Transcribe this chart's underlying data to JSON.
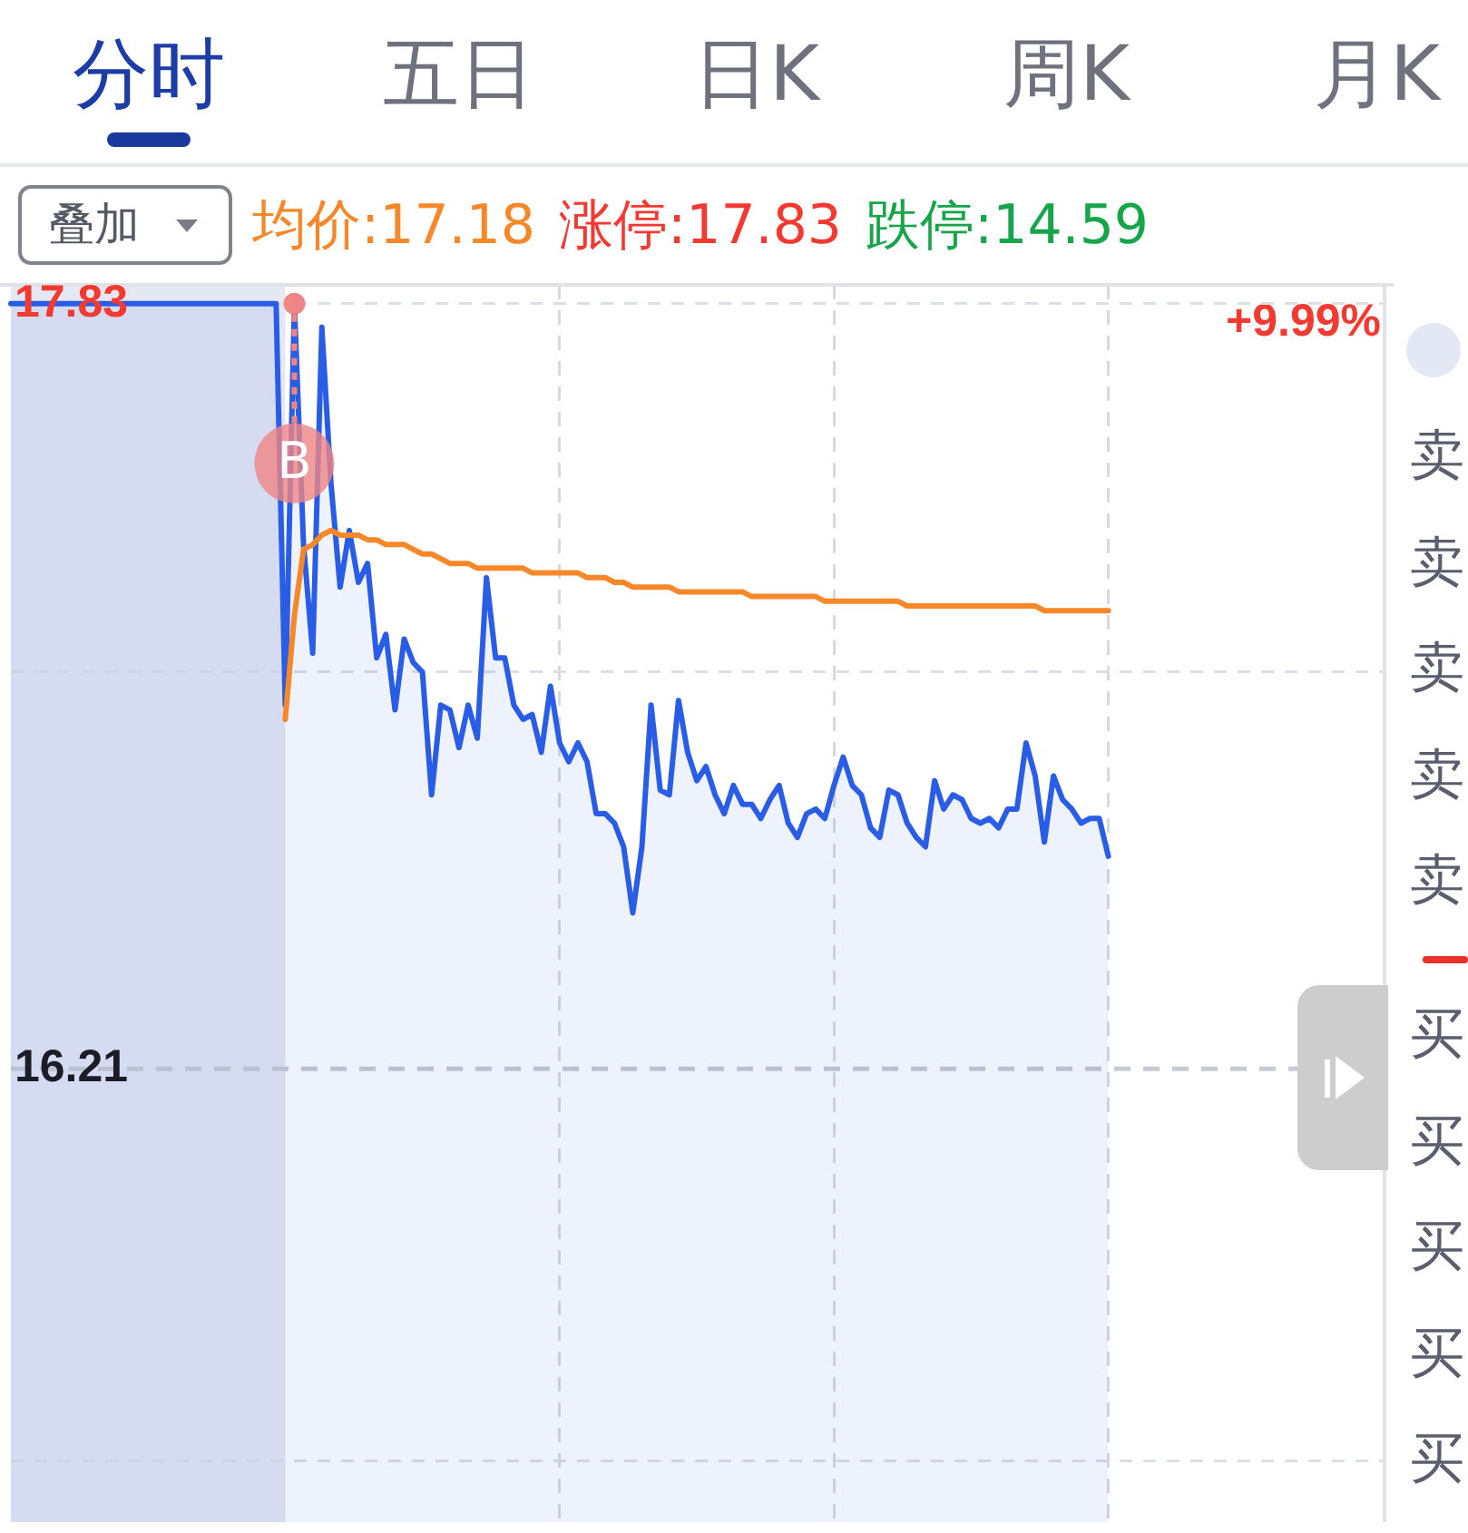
{
  "chart_data": [
    {
      "type": "other",
      "title": "分时",
      "annotations": [
        "五日",
        "日K",
        "周K",
        "月K"
      ]
    },
    {
      "type": "area",
      "categories": [
        null,
        null,
        null,
        null,
        null,
        null,
        null,
        null,
        null,
        null,
        null,
        null,
        null,
        null,
        null,
        null,
        null,
        null,
        null,
        null,
        null,
        null,
        null,
        null,
        null,
        null,
        null,
        null,
        null,
        null,
        null,
        null,
        null,
        null,
        null,
        null,
        null,
        null,
        null,
        null,
        null,
        null,
        null,
        null,
        null,
        null,
        null,
        null,
        null,
        null,
        null,
        null,
        null,
        null,
        null,
        null,
        null,
        null,
        null,
        null,
        null,
        null,
        null,
        null,
        null,
        null,
        null,
        null,
        null,
        null,
        null,
        null,
        null,
        null,
        null,
        null,
        null,
        null,
        null,
        null,
        null,
        null,
        null,
        null,
        null,
        null,
        null,
        null,
        null,
        null,
        null,
        null,
        null,
        null,
        null,
        null,
        null,
        null,
        null,
        null,
        null,
        null,
        null,
        null,
        null,
        null,
        null,
        null,
        null,
        null,
        null,
        null,
        null,
        null,
        null,
        null,
        null,
        null,
        null,
        null,
        null,
        null,
        null,
        null,
        null,
        null,
        null,
        null,
        null,
        null,
        null,
        null,
        null,
        null,
        null,
        null,
        null,
        null,
        null,
        null,
        null,
        null,
        null,
        null,
        null,
        null,
        null,
        null,
        null,
        null,
        null
      ],
      "series": [
        {
          "type": "area",
          "color": "#2a5de6",
          "values": [
            17.83,
            17.83,
            17.83,
            17.83,
            17.83,
            17.83,
            17.83,
            17.83,
            17.83,
            17.83,
            17.83,
            17.83,
            17.83,
            17.83,
            17.83,
            17.83,
            17.83,
            17.83,
            17.83,
            17.83,
            17.83,
            17.83,
            17.83,
            17.83,
            17.83,
            17.83,
            17.83,
            17.83,
            17.83,
            17.83,
            16.98,
            17.83,
            17.32,
            17.09,
            17.78,
            17.45,
            17.23,
            17.35,
            17.24,
            17.28,
            17.08,
            17.13,
            16.97,
            17.12,
            17.07,
            17.05,
            16.79,
            16.98,
            16.97,
            16.89,
            16.98,
            16.91,
            17.25,
            17.08,
            17.08,
            16.98,
            16.95,
            16.96,
            16.88,
            17.02,
            16.9,
            16.86,
            16.9,
            16.86,
            16.75,
            16.75,
            16.73,
            16.68,
            16.54,
            16.68,
            16.98,
            16.8,
            16.79,
            16.99,
            16.88,
            16.82,
            16.85,
            16.79,
            16.75,
            16.81,
            16.77,
            16.77,
            16.74,
            16.78,
            16.81,
            16.73,
            16.7,
            16.75,
            16.76,
            16.74,
            16.81,
            16.87,
            16.81,
            16.79,
            16.72,
            16.7,
            16.8,
            16.79,
            16.73,
            16.7,
            16.68,
            16.82,
            16.76,
            16.79,
            16.78,
            16.74,
            16.73,
            16.74,
            16.72,
            16.76,
            16.76,
            16.9,
            16.83,
            16.69,
            16.83,
            16.78,
            16.76,
            16.73,
            16.74,
            16.74,
            16.66,
            null,
            null,
            null,
            null,
            null,
            null,
            null,
            null,
            null,
            null,
            null,
            null,
            null,
            null,
            null,
            null,
            null,
            null,
            null,
            null,
            null,
            null,
            null,
            null,
            null,
            null,
            null,
            null,
            null,
            null
          ]
        },
        {
          "type": "line",
          "color": "#f7882a",
          "values": [
            null,
            null,
            null,
            null,
            null,
            null,
            null,
            null,
            null,
            null,
            null,
            null,
            null,
            null,
            null,
            null,
            null,
            null,
            null,
            null,
            null,
            null,
            null,
            null,
            null,
            null,
            null,
            null,
            null,
            null,
            16.95,
            17.17,
            17.31,
            17.32,
            17.34,
            17.35,
            17.34,
            17.34,
            17.34,
            17.33,
            17.33,
            17.32,
            17.32,
            17.32,
            17.31,
            17.3,
            17.3,
            17.29,
            17.28,
            17.28,
            17.28,
            17.27,
            17.27,
            17.27,
            17.27,
            17.27,
            17.27,
            17.26,
            17.26,
            17.26,
            17.26,
            17.26,
            17.26,
            17.25,
            17.25,
            17.25,
            17.24,
            17.24,
            17.23,
            17.23,
            17.23,
            17.23,
            17.23,
            17.22,
            17.22,
            17.22,
            17.22,
            17.22,
            17.22,
            17.22,
            17.22,
            17.21,
            17.21,
            17.21,
            17.21,
            17.21,
            17.21,
            17.21,
            17.21,
            17.2,
            17.2,
            17.2,
            17.2,
            17.2,
            17.2,
            17.2,
            17.2,
            17.2,
            17.19,
            17.19,
            17.19,
            17.19,
            17.19,
            17.19,
            17.19,
            17.19,
            17.19,
            17.19,
            17.19,
            17.19,
            17.19,
            17.19,
            17.19,
            17.18,
            17.18,
            17.18,
            17.18,
            17.18,
            17.18,
            17.18,
            17.18,
            null,
            null,
            null,
            null,
            null,
            null,
            null,
            null,
            null,
            null,
            null,
            null,
            null,
            null,
            null,
            null,
            null,
            null,
            null,
            null,
            null,
            null,
            null,
            null,
            null,
            null,
            null,
            null,
            null,
            null
          ]
        },
        {
          "type": "scatter",
          "name": "B",
          "color": "#ef8585",
          "values": [
            null,
            null,
            null,
            null,
            null,
            null,
            null,
            null,
            null,
            null,
            null,
            null,
            null,
            null,
            null,
            null,
            null,
            null,
            null,
            null,
            null,
            null,
            null,
            null,
            null,
            null,
            null,
            null,
            null,
            null,
            null,
            17.83,
            null,
            null,
            null,
            null,
            null,
            null,
            null,
            null,
            null,
            null,
            null,
            null,
            null,
            null,
            null,
            null,
            null,
            null,
            null,
            null,
            null,
            null,
            null,
            null,
            null,
            null,
            null,
            null,
            null,
            null,
            null,
            null,
            null,
            null,
            null,
            null,
            null,
            null,
            null,
            null,
            null,
            null,
            null,
            null,
            null,
            null,
            null,
            null,
            null,
            null,
            null,
            null,
            null,
            null,
            null,
            null,
            null,
            null,
            null,
            null,
            null,
            null,
            null,
            null,
            null,
            null,
            null,
            null,
            null,
            null,
            null,
            null,
            null,
            null,
            null,
            null,
            null,
            null,
            null,
            null,
            null,
            null,
            null,
            null,
            null,
            null,
            null,
            null,
            null,
            null,
            null,
            null,
            null,
            null,
            null,
            null,
            null,
            null,
            null,
            null,
            null,
            null,
            null,
            null,
            null,
            null,
            null,
            null,
            null,
            null,
            null,
            null,
            null,
            null,
            null,
            null,
            null,
            null,
            null
          ]
        }
      ],
      "ylim": [
        15.25,
        17.87
      ],
      "yticks": [
        17.83,
        {
          "value": 17.05,
          "label": null
        },
        16.21,
        {
          "value": 15.38,
          "label": null
        }
      ],
      "grid": true,
      "tick_labels": "y",
      "ref_lines": [
        {
          "axis": "y",
          "value": 16.21
        }
      ],
      "annotations": [
        "叠加",
        "均价:17.18",
        "涨停:17.83",
        "跌停:14.59",
        "+9.99%"
      ]
    },
    {
      "type": "other",
      "annotations": [
        "卖",
        "卖",
        "卖",
        "卖",
        "卖",
        "买",
        "买",
        "买",
        "买",
        "买"
      ]
    }
  ]
}
